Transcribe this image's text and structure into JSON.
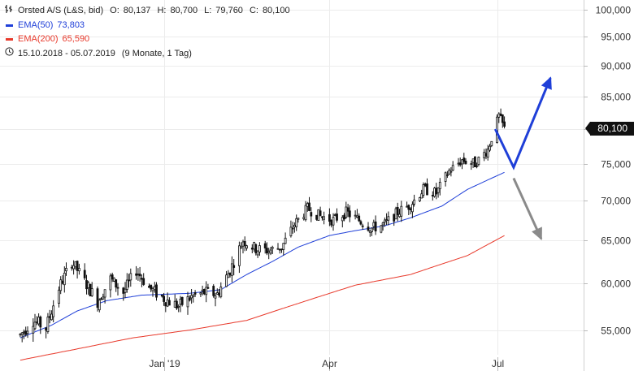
{
  "legend": {
    "instrument": "Orsted A/S (L&S, bid)",
    "ohlc": [
      {
        "label": "O:",
        "value": "80,137"
      },
      {
        "label": "H:",
        "value": "80,700"
      },
      {
        "label": "L:",
        "value": "79,760"
      },
      {
        "label": "C:",
        "value": "80,100"
      }
    ],
    "ema50": {
      "label": "EMA(50)",
      "value": "73,803",
      "color": "#1f3fd8"
    },
    "ema200": {
      "label": "EMA(200)",
      "value": "65,590",
      "color": "#e8392b"
    },
    "range": "15.10.2018 - 05.07.2019",
    "range_note": "(9 Monate, 1 Tag)"
  },
  "last_price": "80,100",
  "chart_data": {
    "type": "candlestick",
    "y_scale": "log",
    "ylim": [
      51500,
      101000
    ],
    "y_ticks": [
      {
        "value": 55000,
        "label": "55,000"
      },
      {
        "value": 60000,
        "label": "60,000"
      },
      {
        "value": 65000,
        "label": "65,000"
      },
      {
        "value": 70000,
        "label": "70,000"
      },
      {
        "value": 75000,
        "label": "75,000"
      },
      {
        "value": 80000,
        "label": "80,000"
      },
      {
        "value": 85000,
        "label": "85,000"
      },
      {
        "value": 90000,
        "label": "90,000"
      },
      {
        "value": 95000,
        "label": "95,000"
      },
      {
        "value": 100000,
        "label": "100,000"
      }
    ],
    "x_range": [
      "2018-10-15",
      "2019-07-05"
    ],
    "x_ticks": [
      {
        "date": "2019-01-01",
        "label": "Jan '19"
      },
      {
        "date": "2019-04-01",
        "label": "Apr"
      },
      {
        "date": "2019-07-01",
        "label": "Jul"
      }
    ],
    "grid": true,
    "price_path": [
      [
        "2018-10-15",
        54.5
      ],
      [
        "2018-10-22",
        56.0
      ],
      [
        "2018-10-29",
        55.2
      ],
      [
        "2018-11-05",
        59.5
      ],
      [
        "2018-11-12",
        62.5
      ],
      [
        "2018-11-19",
        60.2
      ],
      [
        "2018-11-26",
        58.0
      ],
      [
        "2018-12-03",
        60.5
      ],
      [
        "2018-12-10",
        59.0
      ],
      [
        "2018-12-17",
        61.5
      ],
      [
        "2018-12-24",
        59.5
      ],
      [
        "2019-01-02",
        58.2
      ],
      [
        "2019-01-09",
        57.5
      ],
      [
        "2019-01-16",
        58.5
      ],
      [
        "2019-01-23",
        59.0
      ],
      [
        "2019-01-30",
        58.8
      ],
      [
        "2019-02-06",
        61.5
      ],
      [
        "2019-02-13",
        65.0
      ],
      [
        "2019-02-20",
        64.0
      ],
      [
        "2019-02-27",
        63.8
      ],
      [
        "2019-03-06",
        64.2
      ],
      [
        "2019-03-13",
        67.0
      ],
      [
        "2019-03-20",
        69.0
      ],
      [
        "2019-03-27",
        68.0
      ],
      [
        "2019-04-03",
        67.5
      ],
      [
        "2019-04-10",
        68.5
      ],
      [
        "2019-04-17",
        67.5
      ],
      [
        "2019-04-24",
        66.5
      ],
      [
        "2019-05-01",
        67.0
      ],
      [
        "2019-05-08",
        68.5
      ],
      [
        "2019-05-15",
        69.5
      ],
      [
        "2019-05-22",
        71.5
      ],
      [
        "2019-05-29",
        71.0
      ],
      [
        "2019-06-05",
        74.0
      ],
      [
        "2019-06-12",
        75.5
      ],
      [
        "2019-06-19",
        75.0
      ],
      [
        "2019-06-26",
        77.0
      ],
      [
        "2019-07-02",
        82.0
      ],
      [
        "2019-07-05",
        80.1
      ]
    ],
    "series": [
      {
        "name": "EMA(50)",
        "color": "#1f3fd8",
        "values": [
          [
            "2018-10-15",
            54.2
          ],
          [
            "2018-11-01",
            55.5
          ],
          [
            "2018-11-15",
            57.0
          ],
          [
            "2018-12-01",
            58.1
          ],
          [
            "2018-12-20",
            58.7
          ],
          [
            "2019-01-15",
            58.9
          ],
          [
            "2019-02-01",
            59.3
          ],
          [
            "2019-02-15",
            61.0
          ],
          [
            "2019-03-01",
            62.5
          ],
          [
            "2019-03-15",
            64.2
          ],
          [
            "2019-04-01",
            65.6
          ],
          [
            "2019-04-15",
            66.2
          ],
          [
            "2019-05-01",
            66.8
          ],
          [
            "2019-05-15",
            67.8
          ],
          [
            "2019-06-01",
            69.3
          ],
          [
            "2019-06-15",
            71.5
          ],
          [
            "2019-07-05",
            73.8
          ]
        ]
      },
      {
        "name": "EMA(200)",
        "color": "#e8392b",
        "values": [
          [
            "2018-10-15",
            52.0
          ],
          [
            "2018-11-15",
            53.1
          ],
          [
            "2018-12-15",
            54.2
          ],
          [
            "2019-01-15",
            55.0
          ],
          [
            "2019-02-15",
            56.0
          ],
          [
            "2019-03-15",
            57.8
          ],
          [
            "2019-04-15",
            59.8
          ],
          [
            "2019-05-15",
            61.0
          ],
          [
            "2019-06-15",
            63.2
          ],
          [
            "2019-07-05",
            65.59
          ]
        ]
      }
    ],
    "annotations": [
      {
        "type": "arrow-path",
        "color": "#1f3fd8",
        "points": [
          [
            "2019-06-30",
            80.0
          ],
          [
            "2019-07-10",
            74.5
          ],
          [
            "2019-07-30",
            88.0
          ]
        ]
      },
      {
        "type": "arrow",
        "color": "#8a8a8a",
        "points": [
          [
            "2019-07-10",
            73.0
          ],
          [
            "2019-07-25",
            65.2
          ]
        ]
      }
    ]
  }
}
